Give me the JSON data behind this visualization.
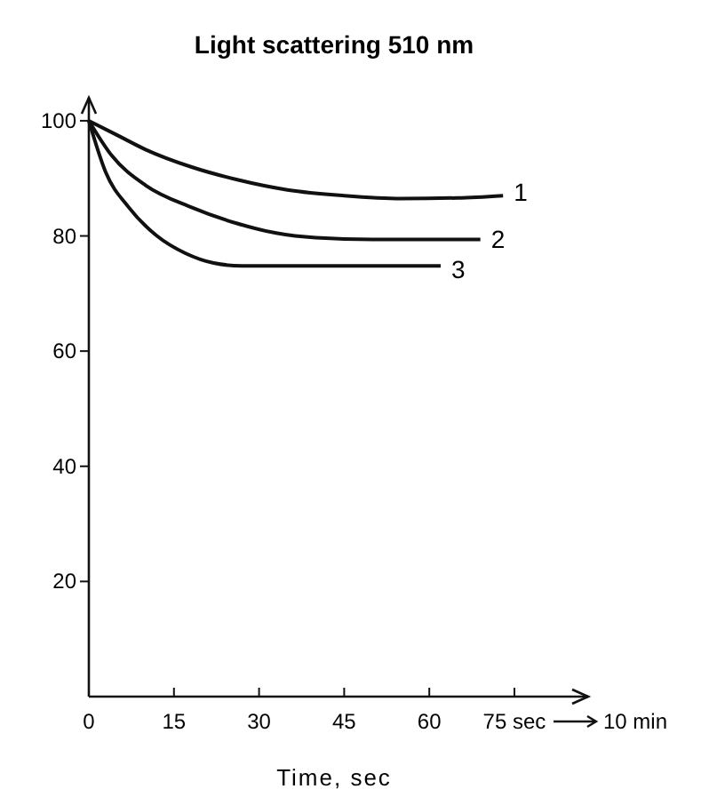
{
  "chart_data": {
    "type": "line",
    "title": "Light scattering 510 nm",
    "xlabel": "Time, sec",
    "xlim": [
      0,
      88
    ],
    "ylim": [
      0,
      104
    ],
    "xticks": [
      0,
      15,
      30,
      45,
      60,
      {
        "value": 75,
        "label": "75 sec"
      }
    ],
    "yticks": [
      20,
      40,
      60,
      80,
      100
    ],
    "annotations": [
      "10 min"
    ],
    "grid": false,
    "marker": "none",
    "line_style": "solid",
    "series": [
      {
        "name": "1",
        "color": "#111111",
        "x": [
          0,
          5,
          10,
          18,
          26,
          35,
          45,
          55,
          65,
          73
        ],
        "values": [
          100,
          97.5,
          95,
          92,
          89.8,
          88,
          87,
          86.5,
          86.6,
          87
        ]
      },
      {
        "name": "2",
        "color": "#111111",
        "x": [
          0,
          4,
          10,
          18,
          26,
          33,
          40,
          50,
          60,
          69
        ],
        "values": [
          100,
          94,
          88.8,
          85,
          82.2,
          80.5,
          79.7,
          79.4,
          79.4,
          79.4
        ]
      },
      {
        "name": "3",
        "color": "#111111",
        "x": [
          0,
          3,
          7,
          12,
          17,
          22,
          27,
          45,
          62
        ],
        "values": [
          100,
          91,
          85,
          80,
          77,
          75.3,
          74.8,
          74.8,
          74.8
        ]
      }
    ]
  }
}
